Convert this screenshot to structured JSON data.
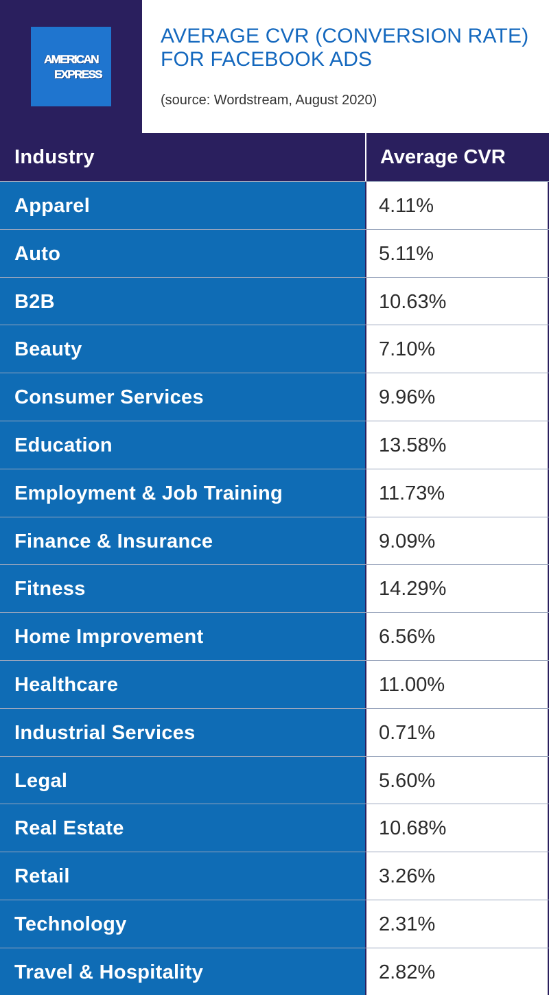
{
  "header": {
    "logo": {
      "line1": "AMERICAN",
      "line2": "EXPRESS",
      "brand_color": "#1f75cf"
    },
    "title_line1": "AVERAGE CVR (CONVERSION RATE)",
    "title_line2": "FOR FACEBOOK ADS",
    "source": "(source: Wordstream, August 2020)"
  },
  "colors": {
    "dark_navy": "#2a1f5e",
    "row_blue": "#0f6cb5",
    "title_blue": "#1468be"
  },
  "chart_data": {
    "type": "table",
    "title": "AVERAGE CVR (CONVERSION RATE) FOR FACEBOOK ADS",
    "columns": [
      "Industry",
      "Average CVR"
    ],
    "rows": [
      [
        "Apparel",
        "4.11%"
      ],
      [
        "Auto",
        "5.11%"
      ],
      [
        "B2B",
        "10.63%"
      ],
      [
        "Beauty",
        "7.10%"
      ],
      [
        "Consumer Services",
        "9.96%"
      ],
      [
        "Education",
        "13.58%"
      ],
      [
        "Employment & Job Training",
        "11.73%"
      ],
      [
        "Finance & Insurance",
        "9.09%"
      ],
      [
        "Fitness",
        "14.29%"
      ],
      [
        "Home Improvement",
        "6.56%"
      ],
      [
        "Healthcare",
        "11.00%"
      ],
      [
        "Industrial Services",
        "0.71%"
      ],
      [
        "Legal",
        "5.60%"
      ],
      [
        "Real Estate",
        "10.68%"
      ],
      [
        "Retail",
        "3.26%"
      ],
      [
        "Technology",
        "2.31%"
      ],
      [
        "Travel & Hospitality",
        "2.82%"
      ]
    ]
  }
}
